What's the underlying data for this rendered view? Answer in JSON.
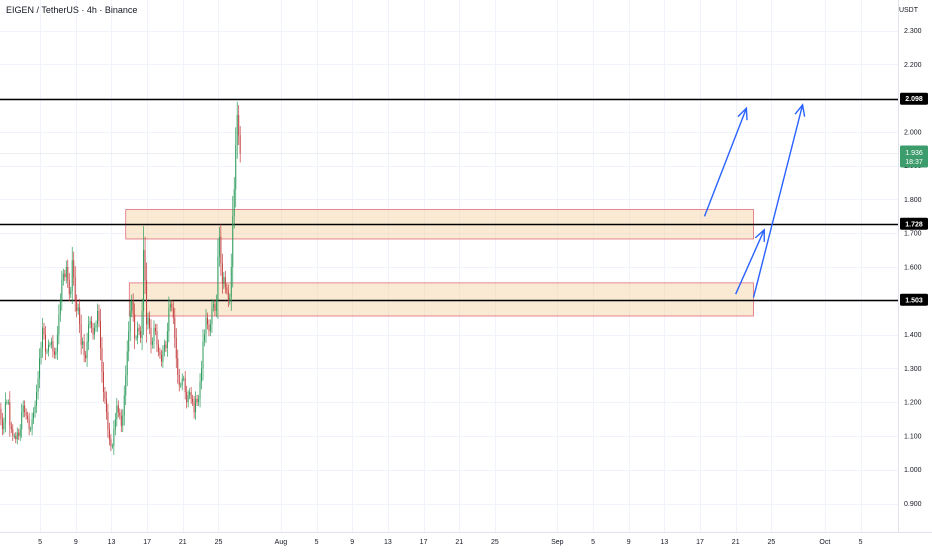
{
  "header": {
    "symbol": "EIGEN / TetherUS · 4h · Binance",
    "unit": "USDT"
  },
  "chart_data": {
    "type": "candlestick",
    "ylim": [
      0.8,
      2.35
    ],
    "y_ticks": [
      "2.300",
      "2.200",
      "2.100",
      "2.000",
      "1.900",
      "1.800",
      "1.700",
      "1.600",
      "1.500",
      "1.400",
      "1.300",
      "1.200",
      "1.100",
      "1.000",
      "0.900"
    ],
    "y_tick_values": [
      2.3,
      2.2,
      2.1,
      2.0,
      1.9,
      1.8,
      1.7,
      1.6,
      1.5,
      1.4,
      1.3,
      1.2,
      1.1,
      1.0,
      0.9
    ],
    "x_ticks": [
      "5",
      "9",
      "13",
      "17",
      "21",
      "25",
      "Aug",
      "5",
      "9",
      "13",
      "17",
      "21",
      "25",
      "Sep",
      "5",
      "9",
      "13",
      "17",
      "21",
      "25",
      "Oct",
      "5"
    ],
    "x_tick_days": [
      5,
      9,
      13,
      17,
      21,
      25,
      32,
      36,
      40,
      44,
      48,
      52,
      56,
      63,
      67,
      71,
      75,
      79,
      83,
      87,
      93,
      97
    ],
    "x_range_days": [
      0.5,
      101.2
    ],
    "key_levels": [
      {
        "label": "2.098",
        "value": 2.098
      },
      {
        "label": "1.728",
        "value": 1.728
      },
      {
        "label": "1.503",
        "value": 1.503
      }
    ],
    "last_price": {
      "label": "1.936",
      "countdown": "18:37",
      "value": 1.936
    },
    "zones": [
      {
        "from_day": 14.6,
        "to_day": 85.0,
        "low": 1.683,
        "high": 1.77
      },
      {
        "from_day": 15.0,
        "to_day": 85.0,
        "low": 1.455,
        "high": 1.553
      }
    ],
    "arrows": [
      {
        "from": [
          79.5,
          1.75
        ],
        "to": [
          84.2,
          2.07
        ]
      },
      {
        "from": [
          83.0,
          1.52
        ],
        "to": [
          86.2,
          1.71
        ]
      },
      {
        "from": [
          85.0,
          1.51
        ],
        "to": [
          90.5,
          2.08
        ]
      }
    ],
    "candles": {
      "start_day": 0.6,
      "bars_per_day": 6,
      "opens": [
        1.18,
        1.15,
        1.12,
        1.14,
        1.2,
        1.2,
        1.2,
        1.13,
        1.12,
        1.1,
        1.1,
        1.09,
        1.11,
        1.1,
        1.12,
        1.17,
        1.19,
        1.17,
        1.16,
        1.15,
        1.12,
        1.12,
        1.15,
        1.17,
        1.19,
        1.23,
        1.27,
        1.33,
        1.36,
        1.42,
        1.4,
        1.35,
        1.35,
        1.37,
        1.37,
        1.38,
        1.35,
        1.34,
        1.35,
        1.4,
        1.46,
        1.5,
        1.56,
        1.58,
        1.57,
        1.6,
        1.56,
        1.52,
        1.53,
        1.62,
        1.57,
        1.5,
        1.47,
        1.48,
        1.43,
        1.37,
        1.38,
        1.34,
        1.33,
        1.38,
        1.43,
        1.44,
        1.42,
        1.4,
        1.42,
        1.43,
        1.47,
        1.44,
        1.36,
        1.29,
        1.23,
        1.21,
        1.17,
        1.12,
        1.09,
        1.07,
        1.07,
        1.12,
        1.15,
        1.19,
        1.17,
        1.16,
        1.13,
        1.16,
        1.22,
        1.28,
        1.35,
        1.41,
        1.47,
        1.5,
        1.46,
        1.39,
        1.39,
        1.42,
        1.41,
        1.39,
        1.47,
        1.65,
        1.56,
        1.43,
        1.45,
        1.42,
        1.37,
        1.38,
        1.42,
        1.41,
        1.37,
        1.35,
        1.34,
        1.32,
        1.35,
        1.37,
        1.36,
        1.41,
        1.48,
        1.49,
        1.48,
        1.45,
        1.39,
        1.33,
        1.28,
        1.25,
        1.25,
        1.27,
        1.27,
        1.23,
        1.2,
        1.22,
        1.23,
        1.21,
        1.2,
        1.17,
        1.21,
        1.2,
        1.21,
        1.26,
        1.3,
        1.38,
        1.4,
        1.45,
        1.43,
        1.41,
        1.43,
        1.48,
        1.49,
        1.47,
        1.5,
        1.63,
        1.69,
        1.61,
        1.55,
        1.57,
        1.54,
        1.53,
        1.5,
        1.51,
        1.6,
        1.75,
        1.83,
        1.96,
        2.05,
        1.99
      ],
      "closes": [
        1.15,
        1.12,
        1.14,
        1.2,
        1.2,
        1.2,
        1.13,
        1.12,
        1.1,
        1.1,
        1.09,
        1.11,
        1.1,
        1.12,
        1.17,
        1.19,
        1.17,
        1.16,
        1.15,
        1.12,
        1.12,
        1.15,
        1.17,
        1.19,
        1.23,
        1.27,
        1.33,
        1.36,
        1.42,
        1.4,
        1.35,
        1.35,
        1.37,
        1.37,
        1.38,
        1.35,
        1.34,
        1.35,
        1.4,
        1.46,
        1.5,
        1.56,
        1.58,
        1.57,
        1.6,
        1.56,
        1.52,
        1.53,
        1.62,
        1.57,
        1.5,
        1.47,
        1.48,
        1.43,
        1.37,
        1.38,
        1.34,
        1.33,
        1.38,
        1.43,
        1.44,
        1.42,
        1.4,
        1.42,
        1.43,
        1.47,
        1.44,
        1.36,
        1.29,
        1.23,
        1.21,
        1.17,
        1.12,
        1.09,
        1.07,
        1.07,
        1.12,
        1.15,
        1.19,
        1.17,
        1.16,
        1.13,
        1.16,
        1.22,
        1.28,
        1.35,
        1.41,
        1.47,
        1.5,
        1.46,
        1.39,
        1.39,
        1.42,
        1.41,
        1.39,
        1.47,
        1.65,
        1.56,
        1.43,
        1.45,
        1.42,
        1.37,
        1.38,
        1.42,
        1.41,
        1.37,
        1.35,
        1.34,
        1.32,
        1.35,
        1.37,
        1.36,
        1.41,
        1.48,
        1.49,
        1.48,
        1.45,
        1.39,
        1.33,
        1.28,
        1.25,
        1.25,
        1.27,
        1.27,
        1.23,
        1.2,
        1.22,
        1.23,
        1.21,
        1.2,
        1.17,
        1.21,
        1.2,
        1.21,
        1.26,
        1.3,
        1.38,
        1.4,
        1.45,
        1.43,
        1.41,
        1.43,
        1.48,
        1.49,
        1.47,
        1.5,
        1.63,
        1.69,
        1.61,
        1.55,
        1.57,
        1.54,
        1.53,
        1.5,
        1.51,
        1.6,
        1.75,
        1.83,
        1.96,
        2.05,
        1.99,
        1.936
      ]
    }
  }
}
